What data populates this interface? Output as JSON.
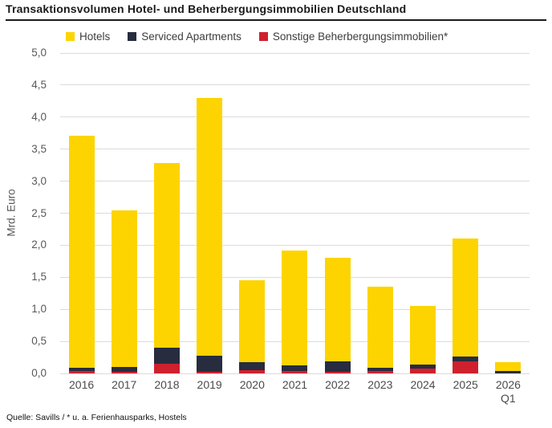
{
  "header": {
    "title": "Transaktionsvolumen Hotel- und Beherbergungsimmobilien Deutschland"
  },
  "footer": {
    "source": "Quelle: Savills / * u. a. Ferienhausparks, Hostels"
  },
  "colors": {
    "hotels_yellow": "#FDD400",
    "serviced_navy": "#272C3F",
    "sonstige_red": "#CF202E",
    "gridline_gray": "#DBDBDB",
    "axis_text_gray": "#58595B"
  },
  "chart_data": {
    "type": "bar",
    "stacked": true,
    "title": "Transaktionsvolumen Hotel- und Beherbergungsimmobilien Deutschland",
    "ylabel": "Mrd. Euro",
    "xlabel": "",
    "ylim": [
      0,
      5
    ],
    "grid": true,
    "legend_position": "top",
    "categories": [
      "2016",
      "2017",
      "2018",
      "2019",
      "2020",
      "2021",
      "2022",
      "2023",
      "2024",
      "2025",
      "2026\nQ1"
    ],
    "series": [
      {
        "name": "Hotels",
        "color": "#FDD400",
        "values": [
          3.62,
          2.44,
          2.88,
          4.02,
          1.29,
          1.8,
          1.62,
          1.26,
          0.91,
          1.84,
          0.13
        ]
      },
      {
        "name": "Serviced Apartments",
        "color": "#272C3F",
        "values": [
          0.05,
          0.07,
          0.25,
          0.25,
          0.12,
          0.08,
          0.16,
          0.05,
          0.07,
          0.07,
          0.04
        ]
      },
      {
        "name": "Sonstige Beherbergungsimmobilien*",
        "color": "#CF202E",
        "values": [
          0.04,
          0.03,
          0.15,
          0.03,
          0.05,
          0.04,
          0.03,
          0.04,
          0.07,
          0.19,
          0.0
        ]
      }
    ],
    "totals": [
      3.71,
      2.54,
      3.28,
      4.3,
      1.46,
      1.92,
      1.81,
      1.35,
      1.05,
      2.1,
      0.17
    ],
    "stack_order_bottom_to_top": [
      "Sonstige Beherbergungsimmobilien*",
      "Serviced Apartments",
      "Hotels"
    ],
    "yticks": [
      {
        "value": 0.0,
        "label": "0,0"
      },
      {
        "value": 0.5,
        "label": "0,5"
      },
      {
        "value": 1.0,
        "label": "1,0"
      },
      {
        "value": 1.5,
        "label": "1,5"
      },
      {
        "value": 2.0,
        "label": "2,0"
      },
      {
        "value": 2.5,
        "label": "2,5"
      },
      {
        "value": 3.0,
        "label": "3,0"
      },
      {
        "value": 3.5,
        "label": "3,5"
      },
      {
        "value": 4.0,
        "label": "4,0"
      },
      {
        "value": 4.5,
        "label": "4,5"
      },
      {
        "value": 5.0,
        "label": "5,0"
      }
    ]
  }
}
